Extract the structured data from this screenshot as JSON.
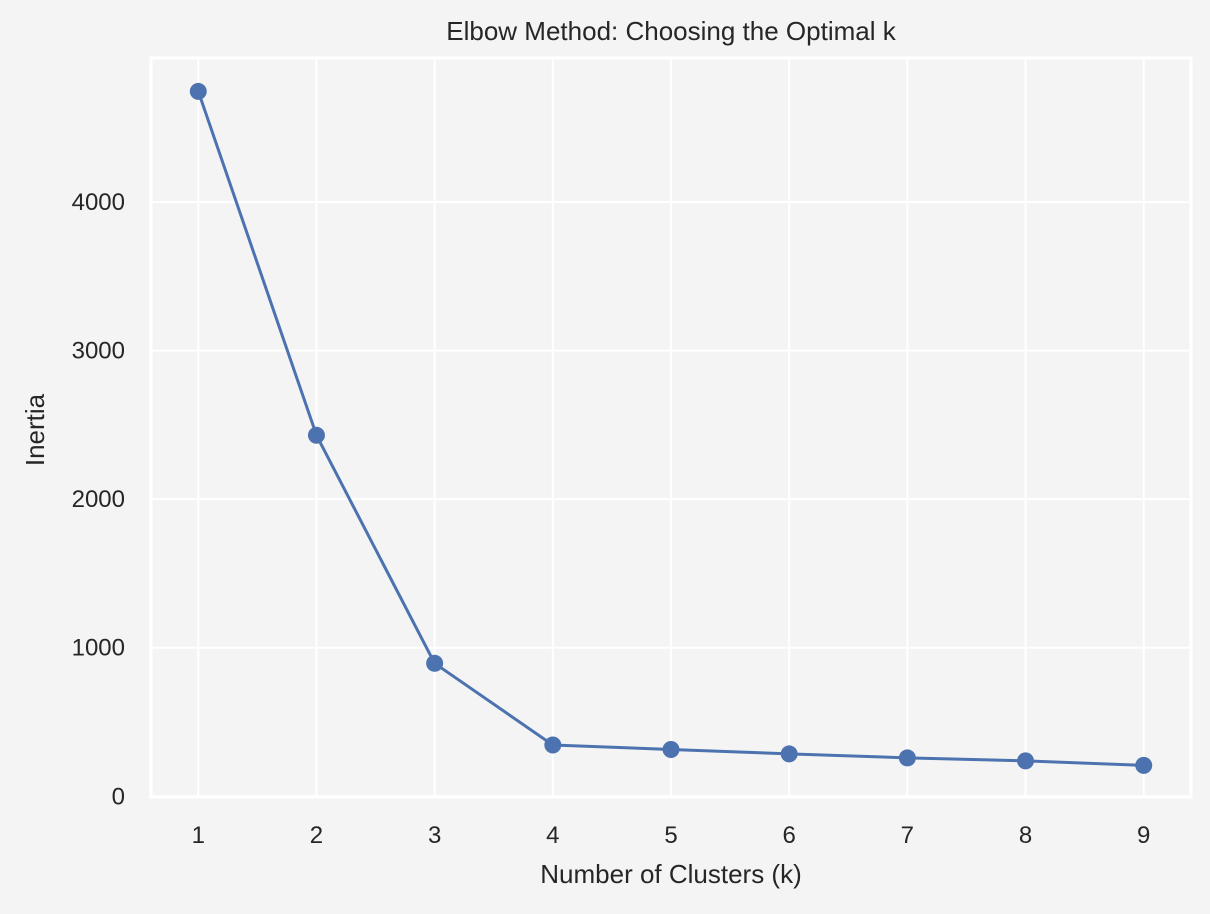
{
  "chart_data": {
    "type": "line",
    "title": "Elbow Method: Choosing the Optimal k",
    "xlabel": "Number of Clusters (k)",
    "ylabel": "Inertia",
    "x": [
      1,
      2,
      3,
      4,
      5,
      6,
      7,
      8,
      9
    ],
    "series": [
      {
        "values": [
          4745,
          2430,
          895,
          345,
          315,
          285,
          258,
          238,
          208
        ],
        "color": "#4c72b0",
        "marker": "circle"
      }
    ],
    "xticks": [
      "1",
      "2",
      "3",
      "4",
      "5",
      "6",
      "7",
      "8",
      "9"
    ],
    "yticks": [
      "0",
      "1000",
      "2000",
      "3000",
      "4000"
    ],
    "ytick_values": [
      0,
      1000,
      2000,
      3000,
      4000
    ],
    "xlim": [
      0.6,
      9.4
    ],
    "ylim": [
      -5,
      4970
    ],
    "grid": true,
    "style": "seaborn-darkgrid",
    "colors": {
      "background": "#f4f4f4",
      "grid": "#ffffff",
      "line": "#4c72b0",
      "text": "#262626"
    }
  }
}
